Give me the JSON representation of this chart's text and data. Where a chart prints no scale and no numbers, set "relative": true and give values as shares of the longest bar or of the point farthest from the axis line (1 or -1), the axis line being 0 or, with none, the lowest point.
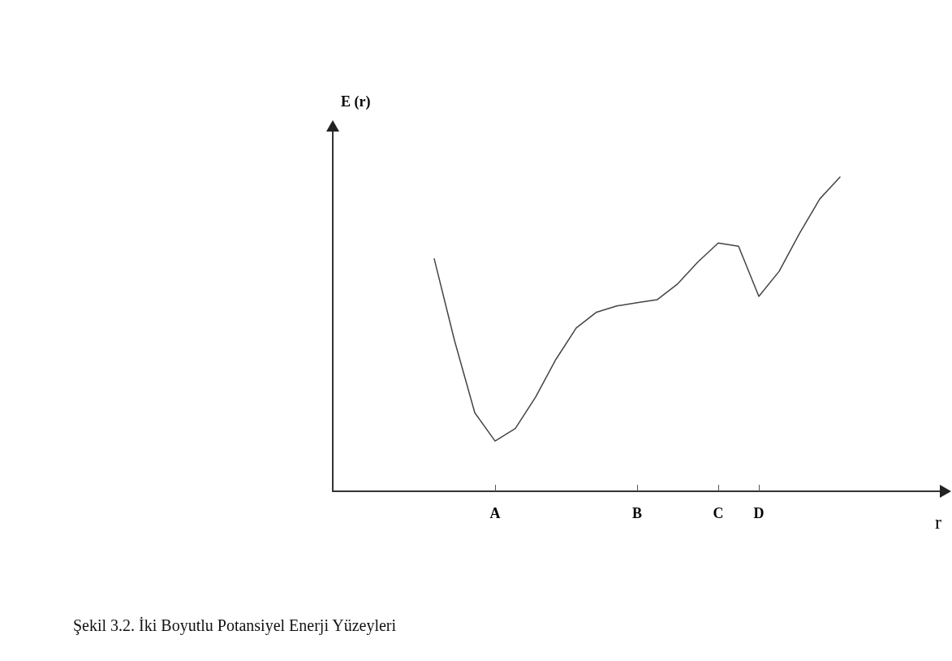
{
  "chart_data": {
    "type": "line",
    "relative": true,
    "xlabel": "r",
    "ylabel": "E (r)",
    "categories": [
      null,
      null,
      null,
      null,
      null,
      null,
      null,
      null,
      "A",
      null,
      null,
      null,
      null,
      null,
      null,
      "B",
      null,
      null,
      null,
      "C",
      null,
      "D",
      null,
      null,
      null,
      null,
      null,
      null,
      null,
      null,
      null
    ],
    "values": [
      null,
      null,
      null,
      null,
      null,
      0.74,
      0.48,
      0.25,
      0.16,
      0.2,
      0.3,
      0.42,
      0.52,
      0.57,
      0.59,
      0.6,
      0.61,
      0.66,
      0.73,
      0.79,
      0.78,
      0.62,
      0.7,
      0.82,
      0.93,
      1.0,
      null,
      null,
      null,
      null,
      null
    ],
    "color": "#444444",
    "grid": false,
    "marker": "none",
    "line_style": "solid",
    "annotations": [
      "Şekil 3.2. İki Boyutlu Potansiyel Enerji Yüzeyleri"
    ]
  }
}
